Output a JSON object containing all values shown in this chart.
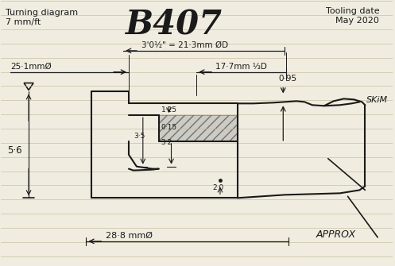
{
  "title": "B407",
  "subtitle_left": "Turning diagram",
  "subtitle_left2": "7 mm/ft",
  "subtitle_right": "Tooling date\nMay 2020",
  "dim1": "3'0½\" = 21·3mm ØD",
  "dim2": "17·7mm ⅓D",
  "dim3": "25·1mmØ",
  "dim4": "↓0·95",
  "dim5": "1·25",
  "dim6": "0·15",
  "dim7": "3·5",
  "dim8": "3·2",
  "dim9": "2·0",
  "dim10": "5·6",
  "dim11": "SKiM",
  "dim12": "28·8 mmØ",
  "dim13": "APPROX",
  "bg_color": "#f0ede0",
  "line_color": "#1a1a1a",
  "ruled_color": "#c8c0a0",
  "line_width": 1.5
}
